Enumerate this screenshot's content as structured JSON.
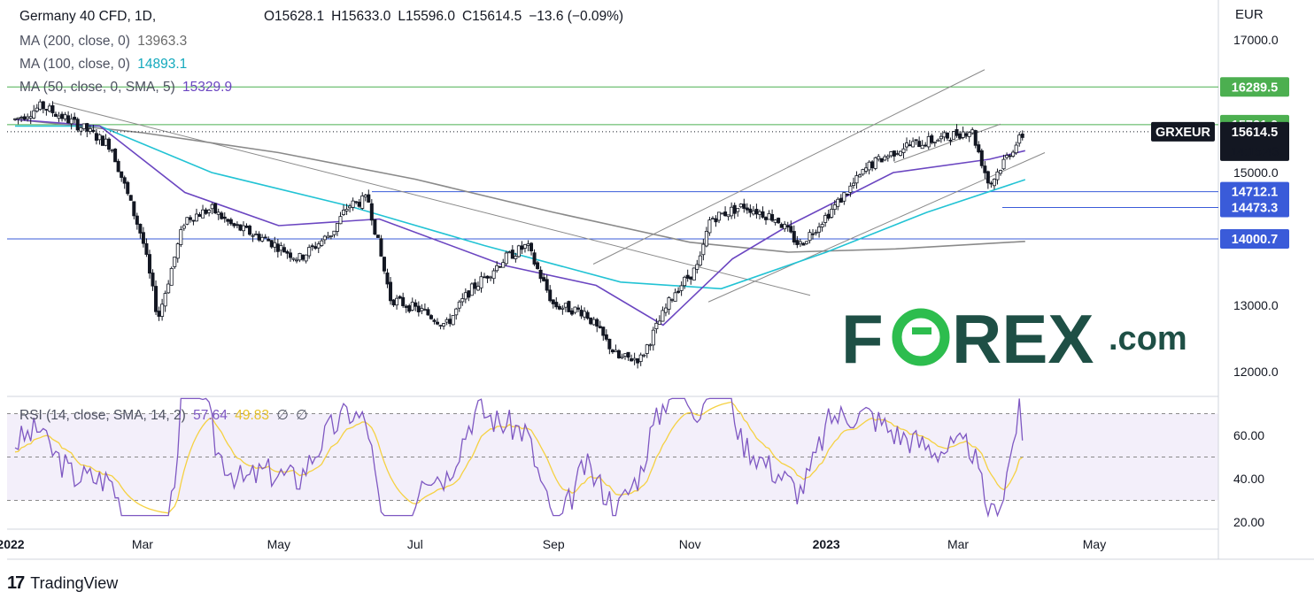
{
  "header": {
    "symbol_title": "Germany 40 CFD, 1D,",
    "ohlc": [
      "O15628.1",
      "H15633.0",
      "L15596.0",
      "C15614.5",
      "−13.6 (−0.09%)"
    ],
    "ma200_label": "MA (200, close, 0)",
    "ma200_value": "13963.3",
    "ma100_label": "MA (100, close, 0)",
    "ma100_value": "14893.1",
    "ma50_label": "MA (50, close, 0, SMA, 5)",
    "ma50_value": "15329.9",
    "currency": "EUR"
  },
  "rsi_legend": {
    "label": "RSI (14, close, SMA, 14, 2)",
    "rsi_value": "57.64",
    "sma_value": "49.83",
    "extra1": "∅",
    "extra2": "∅"
  },
  "price_badges": {
    "green1": "16289.5",
    "green2": "15721.0",
    "symbol": "GRXEUR",
    "last": "15614.5",
    "countdown": "14:15:43",
    "blue1": "14712.1",
    "blue2": "14473.3",
    "blue3": "14000.7"
  },
  "footer": {
    "brand": "TradingView",
    "logo_text": "17"
  },
  "watermark": {
    "prefix": "F",
    "middle": "REX",
    "suffix": ".com"
  },
  "colors": {
    "ma200": "#8a8a8a",
    "ma100": "#22c3d4",
    "ma50": "#6b46c1",
    "up": "#ffffff",
    "down": "#131722",
    "green_line": "#4caf50",
    "blue_line": "#3a5bd9",
    "rsi": "#7e57c2",
    "rsi_sma": "#f5d142",
    "forex_dark": "#1e4f45",
    "forex_green": "#2dbd4e"
  },
  "chart_data": {
    "type": "candlestick",
    "title": "Germany 40 CFD, 1D",
    "y_ticks": [
      17000,
      15000,
      14000,
      13000,
      12000
    ],
    "x_ticks": [
      "2022",
      "Mar",
      "May",
      "Jul",
      "Sep",
      "Nov",
      "2023",
      "Mar",
      "May"
    ],
    "ylim": [
      11800,
      17400
    ],
    "horizontal_levels": [
      {
        "value": 16289.5,
        "kind": "resistance"
      },
      {
        "value": 15721.0,
        "kind": "resistance"
      },
      {
        "value": 14712.1,
        "kind": "support"
      },
      {
        "value": 14473.3,
        "kind": "support"
      },
      {
        "value": 14000.7,
        "kind": "support"
      }
    ],
    "price_path": [
      [
        "2022-01-03",
        15800
      ],
      [
        "2022-01-15",
        16000
      ],
      [
        "2022-02-01",
        15700
      ],
      [
        "2022-02-15",
        15400
      ],
      [
        "2022-03-01",
        14000
      ],
      [
        "2022-03-08",
        12800
      ],
      [
        "2022-03-20",
        14300
      ],
      [
        "2022-04-01",
        14450
      ],
      [
        "2022-04-10",
        14200
      ],
      [
        "2022-04-25",
        14000
      ],
      [
        "2022-05-10",
        13700
      ],
      [
        "2022-05-25",
        14100
      ],
      [
        "2022-06-01",
        14500
      ],
      [
        "2022-06-10",
        14600
      ],
      [
        "2022-06-20",
        13100
      ],
      [
        "2022-07-05",
        12900
      ],
      [
        "2022-07-15",
        12700
      ],
      [
        "2022-07-25",
        13200
      ],
      [
        "2022-08-10",
        13700
      ],
      [
        "2022-08-20",
        13900
      ],
      [
        "2022-09-01",
        13000
      ],
      [
        "2022-09-15",
        12900
      ],
      [
        "2022-09-30",
        12200
      ],
      [
        "2022-10-10",
        12200
      ],
      [
        "2022-10-25",
        13200
      ],
      [
        "2022-11-05",
        13600
      ],
      [
        "2022-11-10",
        14300
      ],
      [
        "2022-11-25",
        14500
      ],
      [
        "2022-12-10",
        14300
      ],
      [
        "2022-12-20",
        13900
      ],
      [
        "2023-01-05",
        14500
      ],
      [
        "2023-01-20",
        15100
      ],
      [
        "2023-02-05",
        15400
      ],
      [
        "2023-02-20",
        15500
      ],
      [
        "2023-03-07",
        15650
      ],
      [
        "2023-03-15",
        14800
      ],
      [
        "2023-03-22",
        15200
      ],
      [
        "2023-03-31",
        15614.5
      ]
    ],
    "ma200": [
      [
        "2022-01-03",
        15800
      ],
      [
        "2022-03-01",
        15600
      ],
      [
        "2022-05-01",
        15300
      ],
      [
        "2022-07-01",
        14900
      ],
      [
        "2022-09-01",
        14400
      ],
      [
        "2022-11-01",
        13950
      ],
      [
        "2022-12-15",
        13800
      ],
      [
        "2023-02-01",
        13850
      ],
      [
        "2023-03-31",
        13963.3
      ]
    ],
    "ma100": [
      [
        "2022-01-03",
        15700
      ],
      [
        "2022-02-10",
        15700
      ],
      [
        "2022-04-01",
        15000
      ],
      [
        "2022-06-01",
        14500
      ],
      [
        "2022-08-01",
        13900
      ],
      [
        "2022-10-01",
        13350
      ],
      [
        "2022-11-15",
        13250
      ],
      [
        "2023-01-01",
        13800
      ],
      [
        "2023-02-15",
        14400
      ],
      [
        "2023-03-31",
        14893.1
      ]
    ],
    "ma50": [
      [
        "2022-01-03",
        15800
      ],
      [
        "2022-02-10",
        15700
      ],
      [
        "2022-03-20",
        14700
      ],
      [
        "2022-05-01",
        14200
      ],
      [
        "2022-06-15",
        14300
      ],
      [
        "2022-08-10",
        13600
      ],
      [
        "2022-09-20",
        13300
      ],
      [
        "2022-10-20",
        12700
      ],
      [
        "2022-11-20",
        13700
      ],
      [
        "2022-12-15",
        14200
      ],
      [
        "2023-01-31",
        15000
      ],
      [
        "2023-03-15",
        15200
      ],
      [
        "2023-03-31",
        15329.9
      ]
    ],
    "rsi": {
      "ylim": [
        20,
        80
      ],
      "y_ticks": [
        60,
        40,
        20
      ],
      "band": [
        30,
        70
      ],
      "mid": 50,
      "last": 57.64,
      "sma_last": 49.83
    }
  }
}
